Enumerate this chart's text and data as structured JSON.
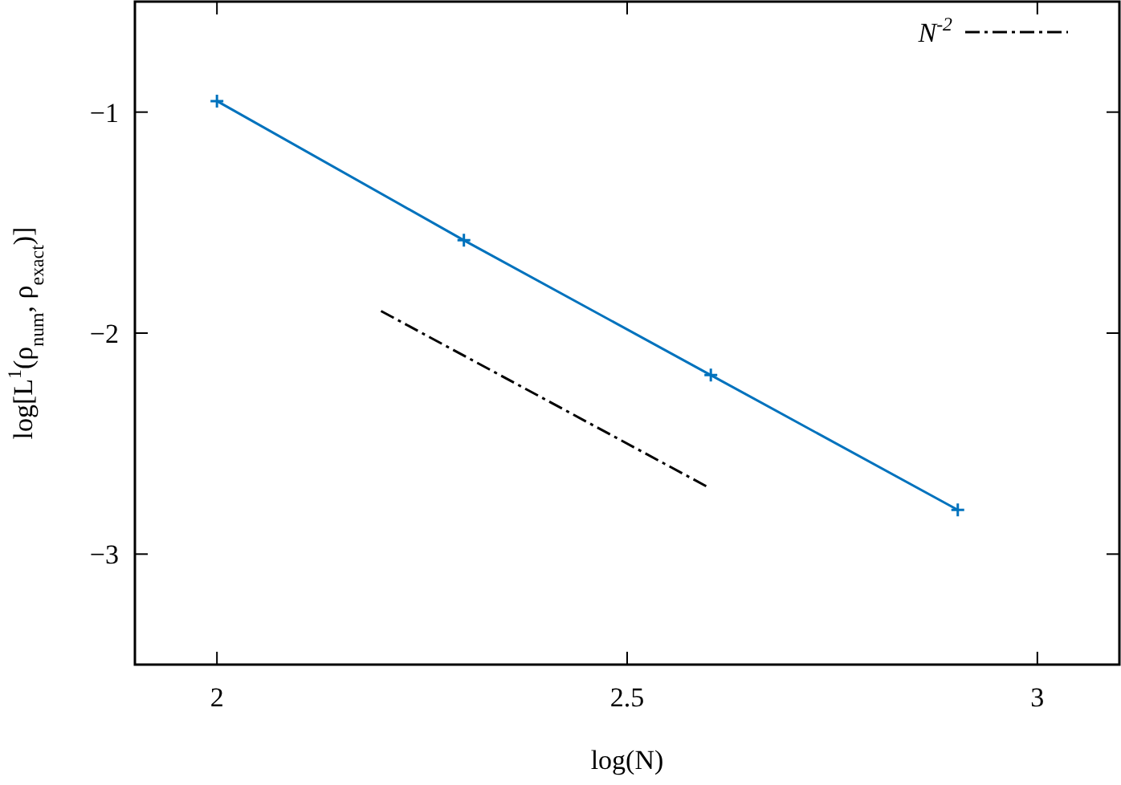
{
  "chart_data": {
    "type": "line",
    "xlabel": "log(N)",
    "ylabel": "log[L$^{1}$(ρ$_{num}$, ρ$_{exact}$)]",
    "xlim": [
      1.9,
      3.1
    ],
    "ylim": [
      -3.5,
      -0.5
    ],
    "xticks": [
      2,
      2.5,
      3
    ],
    "yticks": [
      {
        "value": -1,
        "label": "−1"
      },
      {
        "value": -2,
        "label": "−2"
      },
      {
        "value": -3,
        "label": "−3"
      }
    ],
    "legend": "top right",
    "grid": false,
    "series": [
      {
        "color": "#0072bd",
        "x": [
          2,
          2.301,
          2.602,
          2.903
        ],
        "values": [
          -0.95,
          -1.58,
          -2.19,
          -2.8
        ],
        "marker": "cross",
        "line_style": "solid"
      },
      {
        "name": "N$^{-2}$",
        "color": "#000000",
        "x": [
          2.2,
          2.6
        ],
        "values": [
          -1.9,
          -2.7
        ],
        "marker": "none",
        "line_style": "dashed"
      }
    ]
  }
}
